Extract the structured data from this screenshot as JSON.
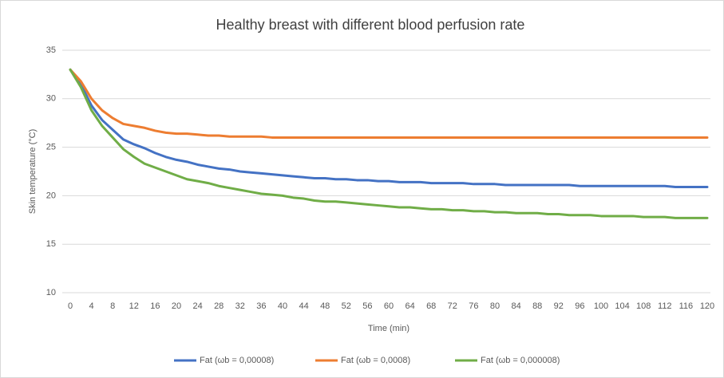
{
  "chart_data": {
    "type": "line",
    "title": "Healthy breast with different blood perfusion rate",
    "xlabel": "Time (min)",
    "ylabel": "Skin temperature (°C)",
    "x": [
      0,
      2,
      4,
      6,
      8,
      10,
      12,
      14,
      16,
      18,
      20,
      22,
      24,
      26,
      28,
      30,
      32,
      34,
      36,
      38,
      40,
      42,
      44,
      46,
      48,
      50,
      52,
      54,
      56,
      58,
      60,
      62,
      64,
      66,
      68,
      70,
      72,
      74,
      76,
      78,
      80,
      82,
      84,
      86,
      88,
      90,
      92,
      94,
      96,
      98,
      100,
      102,
      104,
      106,
      108,
      110,
      112,
      114,
      116,
      118,
      120
    ],
    "xlim": [
      0,
      120
    ],
    "xticks": [
      0,
      4,
      8,
      12,
      16,
      20,
      24,
      28,
      32,
      36,
      40,
      44,
      48,
      52,
      56,
      60,
      64,
      68,
      72,
      76,
      80,
      84,
      88,
      92,
      96,
      100,
      104,
      108,
      112,
      116,
      120
    ],
    "ylim": [
      10,
      35
    ],
    "yticks": [
      10,
      15,
      20,
      25,
      30,
      35
    ],
    "grid": true,
    "legend": "bottom",
    "series": [
      {
        "name": "Fat (ωb = 0,00008)",
        "color": "#4472c4",
        "values": [
          33,
          31.5,
          29.3,
          27.8,
          26.8,
          25.8,
          25.3,
          24.9,
          24.4,
          24,
          23.7,
          23.5,
          23.2,
          23,
          22.8,
          22.7,
          22.5,
          22.4,
          22.3,
          22.2,
          22.1,
          22,
          21.9,
          21.8,
          21.8,
          21.7,
          21.7,
          21.6,
          21.6,
          21.5,
          21.5,
          21.4,
          21.4,
          21.4,
          21.3,
          21.3,
          21.3,
          21.3,
          21.2,
          21.2,
          21.2,
          21.1,
          21.1,
          21.1,
          21.1,
          21.1,
          21.1,
          21.1,
          21,
          21,
          21,
          21,
          21,
          21,
          21,
          21,
          21,
          20.9,
          20.9,
          20.9,
          20.9
        ]
      },
      {
        "name": "Fat (ωb = 0,0008)",
        "color": "#ed7d31",
        "values": [
          33,
          31.8,
          30,
          28.8,
          28,
          27.4,
          27.2,
          27,
          26.7,
          26.5,
          26.4,
          26.4,
          26.3,
          26.2,
          26.2,
          26.1,
          26.1,
          26.1,
          26.1,
          26,
          26,
          26,
          26,
          26,
          26,
          26,
          26,
          26,
          26,
          26,
          26,
          26,
          26,
          26,
          26,
          26,
          26,
          26,
          26,
          26,
          26,
          26,
          26,
          26,
          26,
          26,
          26,
          26,
          26,
          26,
          26,
          26,
          26,
          26,
          26,
          26,
          26,
          26,
          26,
          26,
          26
        ]
      },
      {
        "name": "Fat (ωb = 0,000008)",
        "color": "#70ad47",
        "values": [
          33,
          31.2,
          28.8,
          27.2,
          26,
          24.8,
          24,
          23.3,
          22.9,
          22.5,
          22.1,
          21.7,
          21.5,
          21.3,
          21,
          20.8,
          20.6,
          20.4,
          20.2,
          20.1,
          20,
          19.8,
          19.7,
          19.5,
          19.4,
          19.4,
          19.3,
          19.2,
          19.1,
          19,
          18.9,
          18.8,
          18.8,
          18.7,
          18.6,
          18.6,
          18.5,
          18.5,
          18.4,
          18.4,
          18.3,
          18.3,
          18.2,
          18.2,
          18.2,
          18.1,
          18.1,
          18,
          18,
          18,
          17.9,
          17.9,
          17.9,
          17.9,
          17.8,
          17.8,
          17.8,
          17.7,
          17.7,
          17.7,
          17.7
        ]
      }
    ]
  }
}
